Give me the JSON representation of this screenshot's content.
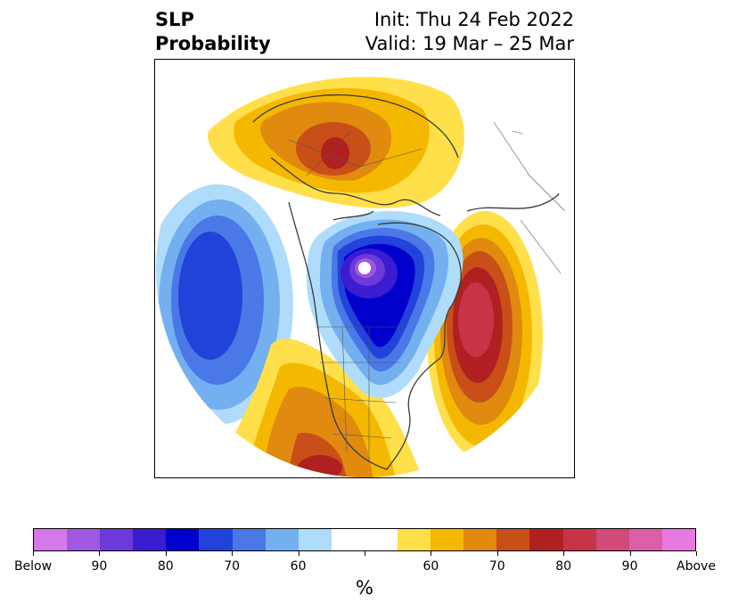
{
  "title": {
    "left_line1": "SLP",
    "left_line2": "Probability",
    "init": "Init: Thu 24 Feb 2022",
    "valid": "Valid: 19 Mar – 25 Mar"
  },
  "colorbar": {
    "colors": [
      "#d679e8",
      "#9e59e0",
      "#6b3ad9",
      "#3b1cd1",
      "#0000cc",
      "#2243d9",
      "#4a78e6",
      "#74b0f0",
      "#aedcfa",
      "#ffffff",
      "#ffffff",
      "#ffe04a",
      "#f5b800",
      "#e08a10",
      "#c85018",
      "#b02020",
      "#c53547",
      "#d04a7a",
      "#db5ea8",
      "#e879e0"
    ],
    "ticks": [
      "Below",
      "90",
      "80",
      "70",
      "60",
      "",
      "60",
      "70",
      "80",
      "90",
      "Above"
    ],
    "units": "%"
  },
  "map_colors": {
    "ocean_bg": "#ffffff",
    "coast": "#3a3a3a"
  }
}
